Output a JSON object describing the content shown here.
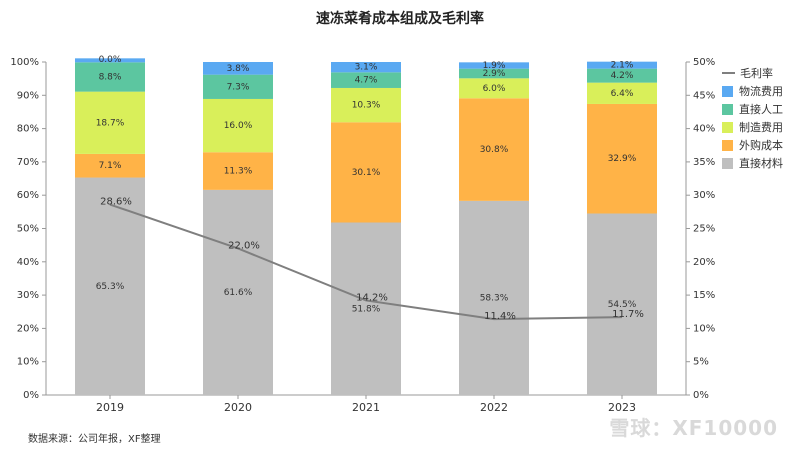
{
  "title": "速冻菜肴成本组成及毛利率",
  "source": "数据来源：公司年报，XF整理",
  "watermark": "雪球：XF10000",
  "colors": {
    "direct_material": "#bfbfbf",
    "outsourcing": "#ffb347",
    "manufacturing": "#d9ef5a",
    "direct_labor": "#5cc6a0",
    "logistics": "#5aa9f2",
    "gross_margin": "#7f7f7f"
  },
  "legend": [
    "毛利率",
    "物流费用",
    "直接人工",
    "制造费用",
    "外购成本",
    "直接材料"
  ],
  "chart_data": {
    "type": "bar",
    "stacked": true,
    "categories": [
      "2019",
      "2020",
      "2021",
      "2022",
      "2023"
    ],
    "series": [
      {
        "name": "直接材料",
        "values": [
          65.3,
          61.6,
          51.8,
          58.3,
          54.5
        ],
        "labels": [
          "65.3%",
          "61.6%",
          "51.8%",
          "58.3%",
          "54.5%"
        ]
      },
      {
        "name": "外购成本",
        "values": [
          7.1,
          11.3,
          30.1,
          30.8,
          32.9
        ],
        "labels": [
          "7.1%",
          "11.3%",
          "30.1%",
          "30.8%",
          "32.9%"
        ]
      },
      {
        "name": "制造费用",
        "values": [
          18.7,
          16.0,
          10.3,
          6.0,
          6.4
        ],
        "labels": [
          "18.7%",
          "16.0%",
          "10.3%",
          "6.0%",
          "6.4%"
        ]
      },
      {
        "name": "直接人工",
        "values": [
          8.8,
          7.3,
          4.7,
          2.9,
          4.2
        ],
        "labels": [
          "8.8%",
          "7.3%",
          "4.7%",
          "2.9%",
          "4.2%"
        ]
      },
      {
        "name": "物流费用",
        "values": [
          0.0,
          3.8,
          3.1,
          1.9,
          2.1
        ],
        "labels": [
          "0.0%",
          "3.8%",
          "3.1%",
          "1.9%",
          "2.1%"
        ]
      }
    ],
    "line": {
      "name": "毛利率",
      "axis": "right",
      "values": [
        28.6,
        22.0,
        14.2,
        11.4,
        11.7
      ],
      "labels": [
        "28.6%",
        "22.0%",
        "14.2%",
        "11.4%",
        "11.7%"
      ]
    },
    "ylim": [
      0,
      100
    ],
    "ylim_right": [
      0,
      50
    ],
    "yticks": [
      "0%",
      "10%",
      "20%",
      "30%",
      "40%",
      "50%",
      "60%",
      "70%",
      "80%",
      "90%",
      "100%"
    ],
    "yticks_right": [
      "0%",
      "5%",
      "10%",
      "15%",
      "20%",
      "25%",
      "30%",
      "35%",
      "40%",
      "45%",
      "50%"
    ],
    "legend_position": "right",
    "grid": false
  }
}
